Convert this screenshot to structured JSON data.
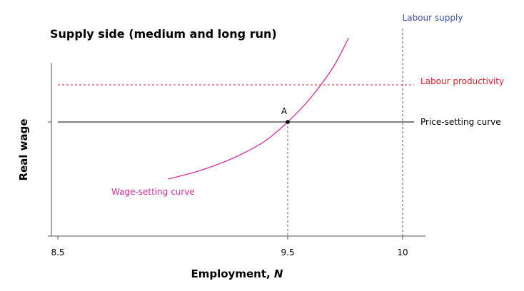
{
  "chart_data": {
    "type": "line",
    "title": "Supply side (medium and long run)",
    "xlabel": "Employment, ",
    "xlabel_var": "N",
    "ylabel": "Real wage",
    "xlim": [
      8.5,
      10.1
    ],
    "ylim": [
      0,
      1.25
    ],
    "x_ticks": [
      {
        "value": 8.5,
        "label": "8.5"
      },
      {
        "value": 9.5,
        "label": "9.5"
      },
      {
        "value": 10,
        "label": "10"
      }
    ],
    "y_ticks": [
      {
        "value": 0,
        "label": ""
      },
      {
        "value": 0.8,
        "label": ""
      }
    ],
    "grid": false,
    "series": [
      {
        "name": "Wage-setting curve",
        "color": "#d2309e",
        "style": "solid",
        "points": [
          [
            8.98,
            0.4
          ],
          [
            9.1,
            0.45
          ],
          [
            9.2,
            0.505
          ],
          [
            9.3,
            0.575
          ],
          [
            9.4,
            0.665
          ],
          [
            9.5,
            0.8
          ],
          [
            9.6,
            0.97
          ],
          [
            9.7,
            1.19
          ],
          [
            9.765,
            1.39
          ]
        ]
      },
      {
        "name": "Price-setting curve",
        "color": "#000000",
        "style": "solid",
        "y": 0.8,
        "x_range": [
          8.5,
          10.05
        ]
      },
      {
        "name": "Labour productivity",
        "color": "#e0202a",
        "style": "dashed",
        "y": 1.06,
        "x_range": [
          8.5,
          10.05
        ]
      },
      {
        "name": "Labour supply",
        "color": "#3b4fa8",
        "style": "dashed",
        "x": 10,
        "y_range": [
          0,
          1.45
        ]
      }
    ],
    "points": [
      {
        "label": "A",
        "x": 9.5,
        "y": 0.8
      }
    ],
    "dropline_color": "#666666"
  }
}
